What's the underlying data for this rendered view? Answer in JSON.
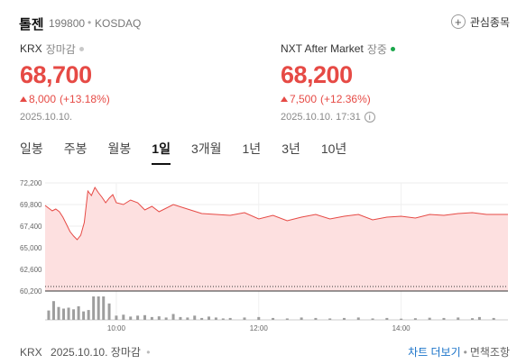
{
  "stock": {
    "name": "톨젠",
    "code": "199800",
    "separator": "•",
    "market": "KOSDAQ",
    "favorite_label": "관심종목",
    "favorite_icon": "plus-circle-icon"
  },
  "krx": {
    "title": "KRX",
    "status": "장마감",
    "price": "68,700",
    "change": "8,000",
    "change_pct": "(+13.18%)",
    "date": "2025.10.10."
  },
  "nxt": {
    "title": "NXT After Market",
    "status": "장중",
    "status_color": "#1aa64a",
    "price": "68,200",
    "change": "7,500",
    "change_pct": "(+12.36%)",
    "date": "2025.10.10. 17:31",
    "info_icon": "info-icon"
  },
  "colors": {
    "up": "#e64a45",
    "area_fill": "#fde0e0",
    "volume": "#9e9e9e",
    "link": "#1a73c9"
  },
  "tabs": [
    {
      "label": "일봉",
      "active": false
    },
    {
      "label": "주봉",
      "active": false
    },
    {
      "label": "월봉",
      "active": false
    },
    {
      "label": "1일",
      "active": true
    },
    {
      "label": "3개월",
      "active": false
    },
    {
      "label": "1년",
      "active": false
    },
    {
      "label": "3년",
      "active": false
    },
    {
      "label": "10년",
      "active": false
    }
  ],
  "chart_data": {
    "type": "area",
    "title": "",
    "xlabel": "",
    "ylabel": "",
    "ylim": [
      60200,
      72200
    ],
    "y_ticks": [
      "72,200",
      "69,800",
      "67,400",
      "65,000",
      "62,600",
      "60,200"
    ],
    "y_tick_values": [
      72200,
      69800,
      67400,
      65000,
      62600,
      60200
    ],
    "x_ticks": [
      "10:00",
      "12:00",
      "14:00"
    ],
    "x_range_hours": [
      9.0,
      15.5
    ],
    "x_tick_hours": [
      10,
      12,
      14
    ],
    "reference_value": 60700,
    "grid": true,
    "series": [
      {
        "x": [
          9.0,
          9.05,
          9.1,
          9.15,
          9.2,
          9.25,
          9.3,
          9.35,
          9.4,
          9.45,
          9.5,
          9.55,
          9.6,
          9.65,
          9.7,
          9.75,
          9.8,
          9.85,
          9.9,
          9.95,
          10.0,
          10.1,
          10.2,
          10.3,
          10.4,
          10.5,
          10.6,
          10.8,
          11.0,
          11.2,
          11.4,
          11.6,
          11.8,
          12.0,
          12.2,
          12.4,
          12.6,
          12.8,
          13.0,
          13.2,
          13.4,
          13.6,
          13.8,
          14.0,
          14.2,
          14.4,
          14.6,
          14.8,
          15.0,
          15.2,
          15.5
        ],
        "values": [
          69700,
          69400,
          69100,
          69300,
          69000,
          68400,
          67600,
          66800,
          66300,
          65900,
          66400,
          67800,
          71300,
          70800,
          71700,
          71100,
          70600,
          70000,
          70500,
          70900,
          70000,
          69800,
          70300,
          70000,
          69200,
          69600,
          69000,
          69800,
          69300,
          68800,
          68700,
          68600,
          68900,
          68200,
          68600,
          68000,
          68400,
          68700,
          68200,
          68500,
          68700,
          68100,
          68400,
          68500,
          68300,
          68700,
          68600,
          68800,
          68900,
          68700,
          68700
        ]
      }
    ],
    "volume": {
      "x": [
        9.05,
        9.12,
        9.19,
        9.26,
        9.33,
        9.4,
        9.47,
        9.54,
        9.61,
        9.68,
        9.75,
        9.82,
        9.9,
        10.0,
        10.1,
        10.2,
        10.3,
        10.4,
        10.5,
        10.6,
        10.7,
        10.8,
        10.9,
        11.0,
        11.1,
        11.2,
        11.3,
        11.4,
        11.5,
        11.6,
        11.8,
        12.0,
        12.2,
        12.4,
        12.6,
        12.8,
        13.0,
        13.2,
        13.4,
        13.6,
        13.8,
        14.0,
        14.2,
        14.4,
        14.6,
        14.8,
        15.0,
        15.1,
        15.3
      ],
      "values": [
        40,
        80,
        55,
        48,
        52,
        45,
        58,
        36,
        42,
        100,
        100,
        100,
        70,
        18,
        22,
        14,
        18,
        20,
        12,
        15,
        10,
        25,
        12,
        10,
        18,
        8,
        14,
        10,
        6,
        8,
        10,
        12,
        8,
        6,
        10,
        8,
        6,
        8,
        10,
        6,
        8,
        5,
        7,
        9,
        8,
        10,
        7,
        12,
        8
      ]
    }
  },
  "footer": {
    "source": "KRX",
    "date": "2025.10.10.",
    "status": "장마감",
    "chart_link": "차트 더보기",
    "separator": "•",
    "terms": "면책조항"
  }
}
